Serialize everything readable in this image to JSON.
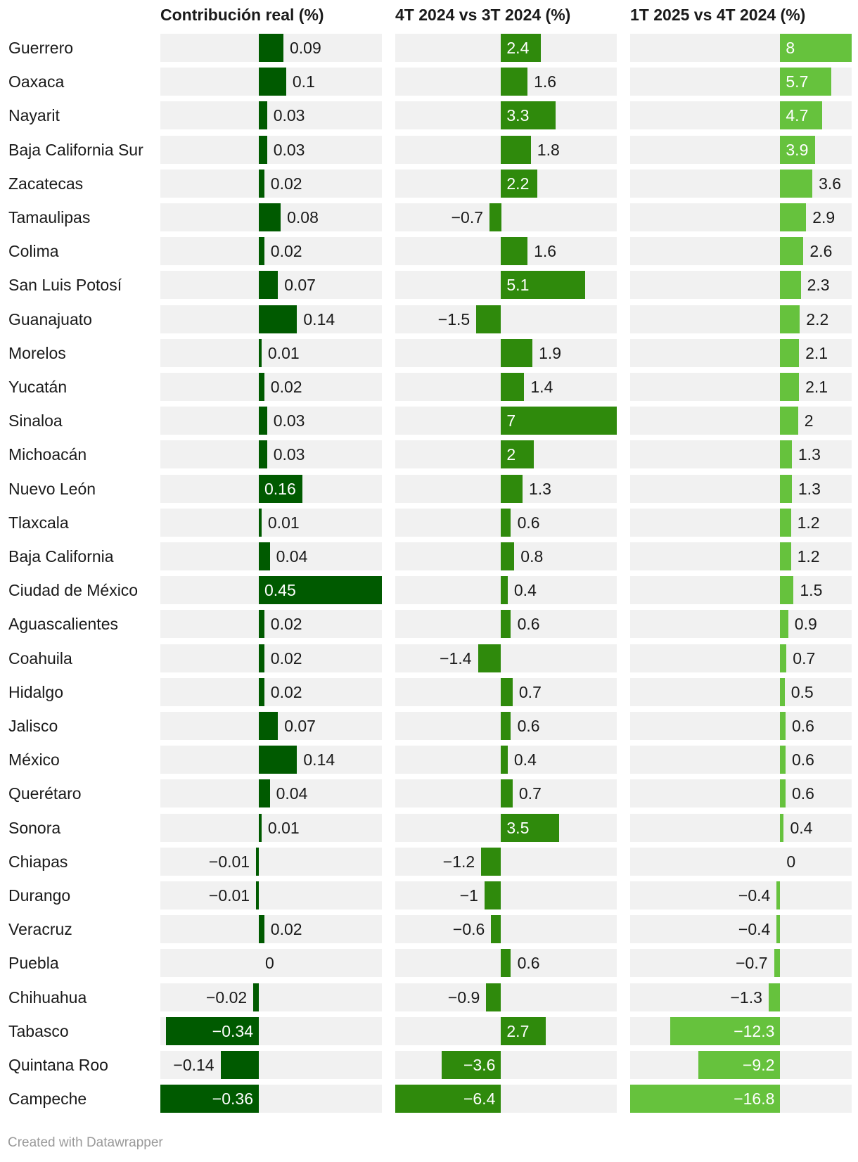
{
  "chart_data": {
    "type": "bar",
    "subtype": "horizontal-small-multiples",
    "categories": [
      "Guerrero",
      "Oaxaca",
      "Nayarit",
      "Baja California Sur",
      "Zacatecas",
      "Tamaulipas",
      "Colima",
      "San Luis Potosí",
      "Guanajuato",
      "Morelos",
      "Yucatán",
      "Sinaloa",
      "Michoacán",
      "Nuevo León",
      "Tlaxcala",
      "Baja California",
      "Ciudad de México",
      "Aguascalientes",
      "Coahuila",
      "Hidalgo",
      "Jalisco",
      "México",
      "Querétaro",
      "Sonora",
      "Chiapas",
      "Durango",
      "Veracruz",
      "Puebla",
      "Chihuahua",
      "Tabasco",
      "Quintana Roo",
      "Campeche"
    ],
    "series": [
      {
        "name": "Contribución real (%)",
        "color": "#005a00",
        "xlim": [
          -0.36,
          0.45
        ],
        "values": [
          0.09,
          0.1,
          0.03,
          0.03,
          0.02,
          0.08,
          0.02,
          0.07,
          0.14,
          0.01,
          0.02,
          0.03,
          0.03,
          0.16,
          0.01,
          0.04,
          0.45,
          0.02,
          0.02,
          0.02,
          0.07,
          0.14,
          0.04,
          0.01,
          -0.01,
          -0.01,
          0.02,
          0,
          -0.02,
          -0.34,
          -0.14,
          -0.36
        ]
      },
      {
        "name": "4T 2024 vs 3T 2024 (%)",
        "color": "#2f8a0c",
        "xlim": [
          -6.4,
          7
        ],
        "values": [
          2.4,
          1.6,
          3.3,
          1.8,
          2.2,
          -0.7,
          1.6,
          5.1,
          -1.5,
          1.9,
          1.4,
          7,
          2,
          1.3,
          0.6,
          0.8,
          0.4,
          0.6,
          -1.4,
          0.7,
          0.6,
          0.4,
          0.7,
          3.5,
          -1.2,
          -1,
          -0.6,
          0.6,
          -0.9,
          2.7,
          -3.6,
          -6.4
        ]
      },
      {
        "name": "1T 2025 vs 4T 2024 (%)",
        "color": "#66c23d",
        "xlim": [
          -16.8,
          8
        ],
        "values": [
          8,
          5.7,
          4.7,
          3.9,
          3.6,
          2.9,
          2.6,
          2.3,
          2.2,
          2.1,
          2.1,
          2,
          1.3,
          1.3,
          1.2,
          1.2,
          1.5,
          0.9,
          0.7,
          0.5,
          0.6,
          0.6,
          0.6,
          0.4,
          0,
          -0.4,
          -0.4,
          -0.7,
          -1.3,
          -12.3,
          -9.2,
          -16.8
        ]
      }
    ],
    "xlabel": "",
    "ylabel": "",
    "grid": false
  },
  "footer": "Created with Datawrapper"
}
